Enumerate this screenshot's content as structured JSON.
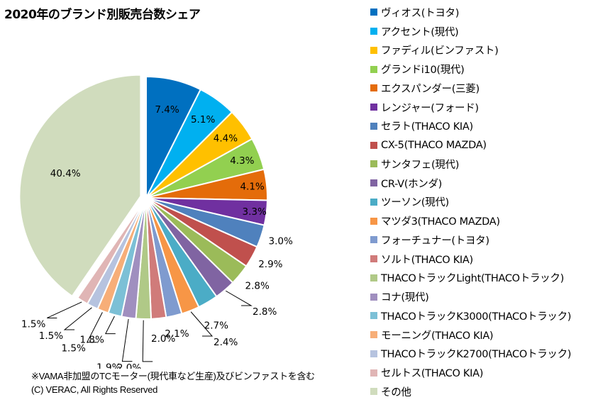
{
  "chart_data": {
    "type": "pie",
    "title": "2020年のブランド別販売台数シェア",
    "legend_position": "right",
    "unit": "%",
    "exploded": [
      "その他"
    ],
    "slices": [
      {
        "name": "ヴィオス(トヨタ)",
        "value": 7.4,
        "label": "7.4%",
        "color": "#0070C0"
      },
      {
        "name": "アクセント(現代)",
        "value": 5.1,
        "label": "5.1%",
        "color": "#00B0F0"
      },
      {
        "name": "ファディル(ビンファスト)",
        "value": 4.4,
        "label": "4.4%",
        "color": "#FFC000"
      },
      {
        "name": "グランドi10(現代)",
        "value": 4.3,
        "label": "4.3%",
        "color": "#92D050"
      },
      {
        "name": "エクスパンダー(三菱)",
        "value": 4.1,
        "label": "4.1%",
        "color": "#E46C0A"
      },
      {
        "name": "レンジャー(フォード)",
        "value": 3.3,
        "label": "3.3%",
        "color": "#7030A0"
      },
      {
        "name": "セラト(THACO KIA)",
        "value": 3.0,
        "label": "3.0%",
        "color": "#4F81BD"
      },
      {
        "name": "CX-5(THACO MAZDA)",
        "value": 2.9,
        "label": "2.9%",
        "color": "#C0504D"
      },
      {
        "name": "サンタフェ(現代)",
        "value": 2.8,
        "label": "2.8%",
        "color": "#9BBB59"
      },
      {
        "name": "CR-V(ホンダ)",
        "value": 2.8,
        "label": "2.8%",
        "color": "#8064A2"
      },
      {
        "name": "ツーソン(現代)",
        "value": 2.7,
        "label": "2.7%",
        "color": "#4BACC6"
      },
      {
        "name": "マツダ3(THACO MAZDA)",
        "value": 2.4,
        "label": "2.4%",
        "color": "#F79646"
      },
      {
        "name": "フォーチュナー(トヨタ)",
        "value": 2.1,
        "label": "2.1%",
        "color": "#7F9BCF"
      },
      {
        "name": "ソルト(THACO KIA)",
        "value": 2.0,
        "label": "2.0%",
        "color": "#D07B7A"
      },
      {
        "name": "THACOトラックLight(THACOトラック)",
        "value": 2.0,
        "label": "2.0%",
        "color": "#B0C987"
      },
      {
        "name": "コナ(現代)",
        "value": 1.9,
        "label": "1.9%",
        "color": "#A08FBF"
      },
      {
        "name": "THACOトラックK3000(THACOトラック)",
        "value": 1.8,
        "label": "1.8%",
        "color": "#7CC0D6"
      },
      {
        "name": "モーニング(THACO KIA)",
        "value": 1.5,
        "label": "1.5%",
        "color": "#F7AE78"
      },
      {
        "name": "THACOトラックK2700(THACOトラック)",
        "value": 1.5,
        "label": "1.5%",
        "color": "#B6C3DF"
      },
      {
        "name": "セルトス(THACO KIA)",
        "value": 1.5,
        "label": "1.5%",
        "color": "#E0B5B5"
      },
      {
        "name": "その他",
        "value": 40.4,
        "label": "40.4%",
        "color": "#D0DCBD"
      }
    ]
  },
  "footnote": "※VAMA非加盟のTCモーター(現代車など生産)及びビンファストを含む",
  "copyright": "(C) VERAC, All Rights Reserved"
}
